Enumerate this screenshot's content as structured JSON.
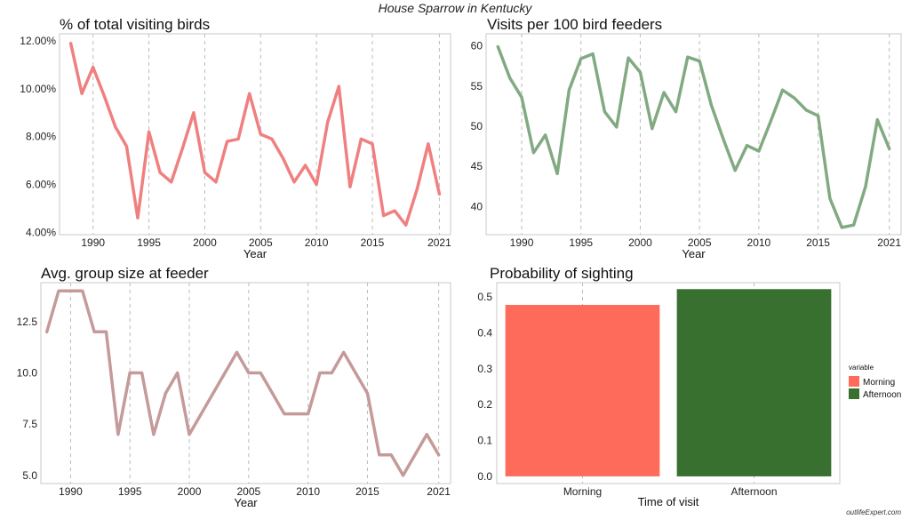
{
  "figure": {
    "title": "House Sparrow in Kentucky",
    "credit": "outlifeExpert.com"
  },
  "chart_data": [
    {
      "type": "line",
      "title": "% of total visiting birds",
      "xlabel": "Year",
      "ylabel": "",
      "xlim": [
        1987,
        2022
      ],
      "ylim": [
        3.9,
        12.3
      ],
      "x_ticks": [
        1990,
        1995,
        2000,
        2005,
        2010,
        2015,
        2021
      ],
      "y_ticks": [
        4,
        6,
        8,
        10,
        12
      ],
      "y_tick_labels": [
        "4.00%",
        "6.00%",
        "8.00%",
        "10.00%",
        "12.00%"
      ],
      "color": "#f08080",
      "grid": "vertical dashed",
      "series": [
        {
          "x": [
            1988,
            1989,
            1990,
            1991,
            1992,
            1993,
            1994,
            1995,
            1996,
            1997,
            1998,
            1999,
            2000,
            2001,
            2002,
            2003,
            2004,
            2005,
            2006,
            2007,
            2008,
            2009,
            2010,
            2011,
            2012,
            2013,
            2014,
            2015,
            2016,
            2017,
            2018,
            2019,
            2020,
            2021
          ],
          "values": [
            11.9,
            9.8,
            10.9,
            9.7,
            8.4,
            7.6,
            4.6,
            8.2,
            6.5,
            6.1,
            7.5,
            9.0,
            6.5,
            6.1,
            7.8,
            7.9,
            9.8,
            8.1,
            7.9,
            7.1,
            6.1,
            6.8,
            6.0,
            8.6,
            10.1,
            5.9,
            7.9,
            7.7,
            4.7,
            4.9,
            4.3,
            5.8,
            7.7,
            5.6
          ]
        }
      ]
    },
    {
      "type": "line",
      "title": "Visits per 100 bird feeders",
      "xlabel": "Year",
      "ylabel": "",
      "xlim": [
        1987,
        2022
      ],
      "ylim": [
        36.5,
        61.5
      ],
      "x_ticks": [
        1990,
        1995,
        2000,
        2005,
        2010,
        2015,
        2021
      ],
      "y_ticks": [
        40,
        45,
        50,
        55,
        60
      ],
      "y_tick_labels": [
        "40",
        "45",
        "50",
        "55",
        "60"
      ],
      "color": "#82aa82",
      "grid": "vertical dashed",
      "series": [
        {
          "x": [
            1988,
            1989,
            1990,
            1991,
            1992,
            1993,
            1994,
            1995,
            1996,
            1997,
            1998,
            1999,
            2000,
            2001,
            2002,
            2003,
            2004,
            2005,
            2006,
            2007,
            2008,
            2009,
            2010,
            2011,
            2012,
            2013,
            2014,
            2015,
            2016,
            2017,
            2018,
            2019,
            2020,
            2021
          ],
          "values": [
            59.9,
            56.0,
            53.6,
            46.7,
            48.9,
            44.1,
            54.5,
            58.4,
            59.0,
            51.8,
            49.9,
            58.5,
            56.7,
            49.7,
            54.2,
            51.8,
            58.6,
            58.1,
            52.6,
            48.4,
            44.5,
            47.6,
            46.9,
            50.6,
            54.5,
            53.5,
            52.0,
            51.3,
            41.0,
            37.4,
            37.7,
            42.5,
            50.8,
            47.2
          ]
        }
      ]
    },
    {
      "type": "line",
      "title": "Avg. group size at feeder",
      "xlabel": "Year",
      "ylabel": "",
      "xlim": [
        1987.5,
        2022
      ],
      "ylim": [
        4.6,
        14.4
      ],
      "x_ticks": [
        1990,
        1995,
        2000,
        2005,
        2010,
        2015,
        2021
      ],
      "y_ticks": [
        5,
        7.5,
        10,
        12.5
      ],
      "y_tick_labels": [
        "5.0",
        "7.5",
        "10.0",
        "12.5"
      ],
      "color": "#c49a9a",
      "grid": "vertical dashed",
      "series": [
        {
          "x": [
            1988,
            1989,
            1990,
            1991,
            1992,
            1993,
            1994,
            1995,
            1996,
            1997,
            1998,
            1999,
            2000,
            2001,
            2002,
            2003,
            2004,
            2005,
            2006,
            2007,
            2008,
            2009,
            2010,
            2011,
            2012,
            2013,
            2014,
            2015,
            2016,
            2017,
            2018,
            2019,
            2020,
            2021
          ],
          "values": [
            12,
            14,
            14,
            14,
            12,
            12,
            7,
            10,
            10,
            7,
            9,
            10,
            7,
            8,
            9,
            10,
            11,
            10,
            10,
            9,
            8,
            8,
            8,
            10,
            10,
            11,
            10,
            9,
            6,
            6,
            5,
            6,
            7,
            6
          ]
        }
      ]
    },
    {
      "type": "bar",
      "title": "Probability of sighting",
      "xlabel": "Time of visit",
      "ylabel": "",
      "ylim": [
        -0.02,
        0.54
      ],
      "y_ticks": [
        0,
        0.1,
        0.2,
        0.3,
        0.4,
        0.5
      ],
      "y_tick_labels": [
        "0.0",
        "0.1",
        "0.2",
        "0.3",
        "0.4",
        "0.5"
      ],
      "categories": [
        "Morning",
        "Afternoon"
      ],
      "values": [
        0.478,
        0.522
      ],
      "colors": [
        "#ff6b5b",
        "#38702f"
      ],
      "grid": "vertical dashed",
      "legend": {
        "title": "variable",
        "position": "right",
        "entries": [
          {
            "label": "Morning",
            "color": "#ff6b5b"
          },
          {
            "label": "Afternoon",
            "color": "#38702f"
          }
        ]
      }
    }
  ]
}
